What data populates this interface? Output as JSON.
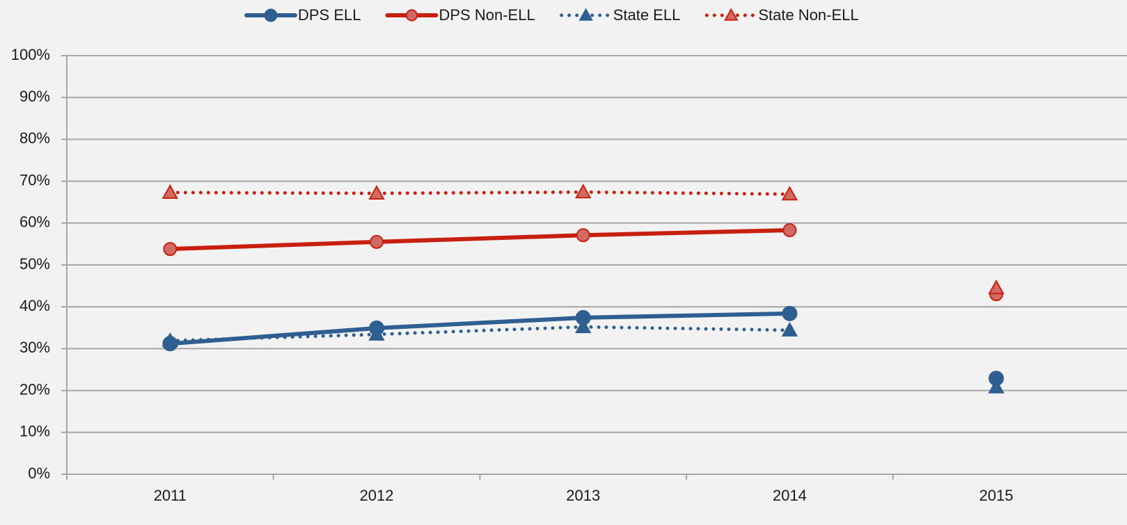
{
  "chart_data": {
    "type": "line",
    "categories": [
      "2011",
      "2012",
      "2013",
      "2014",
      "2015"
    ],
    "break_before": 4,
    "series": [
      {
        "name": "DPS ELL",
        "color": "#2e5f90",
        "marker": "circle",
        "dash": "solid",
        "values": [
          31.2,
          34.9,
          37.4,
          38.4,
          22.9
        ]
      },
      {
        "name": "DPS Non-ELL",
        "color": "#c82010",
        "marker_fill": "#d06a62",
        "marker": "circle",
        "dash": "solid",
        "values": [
          53.8,
          55.5,
          57.1,
          58.3,
          43.0
        ]
      },
      {
        "name": "State ELL",
        "color": "#2e5f90",
        "marker": "triangle",
        "dash": "dotted",
        "values": [
          31.9,
          33.4,
          35.2,
          34.4,
          20.8
        ]
      },
      {
        "name": "State Non-ELL",
        "color": "#c82010",
        "marker_fill": "#d06a62",
        "marker": "triangle",
        "dash": "dotted",
        "values": [
          67.3,
          67.1,
          67.4,
          66.9,
          44.5
        ]
      }
    ],
    "ylim": [
      0,
      100
    ],
    "yticks": [
      {
        "value": 0,
        "label": "0%"
      },
      {
        "value": 10,
        "label": "10%"
      },
      {
        "value": 20,
        "label": "20%"
      },
      {
        "value": 30,
        "label": "30%"
      },
      {
        "value": 40,
        "label": "40%"
      },
      {
        "value": 50,
        "label": "50%"
      },
      {
        "value": 60,
        "label": "60%"
      },
      {
        "value": 70,
        "label": "70%"
      },
      {
        "value": 80,
        "label": "80%"
      },
      {
        "value": 90,
        "label": "90%"
      },
      {
        "value": 100,
        "label": "100%"
      }
    ],
    "grid": true,
    "legend": "top"
  }
}
